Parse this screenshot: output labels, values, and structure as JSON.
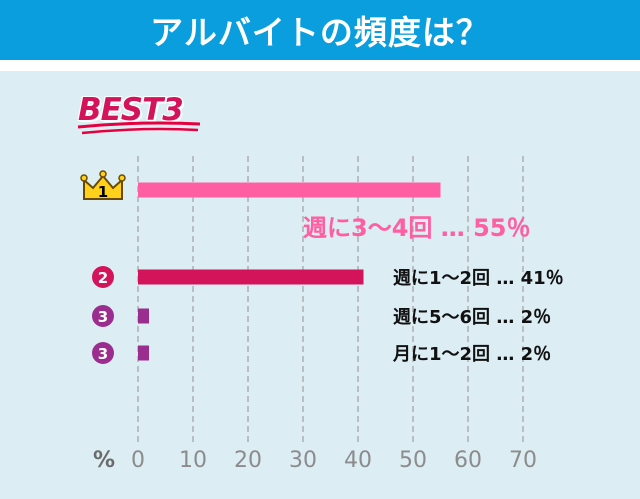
{
  "header": {
    "title": "アルバイトの頻度は？"
  },
  "badge": {
    "label": "BEST3"
  },
  "chart_data": {
    "type": "bar",
    "orientation": "horizontal",
    "title": "アルバイトの頻度は？",
    "unit_label": "%",
    "xlim": [
      0,
      70
    ],
    "ticks": [
      0,
      10,
      20,
      30,
      40,
      50,
      60,
      70
    ],
    "grid": true,
    "rows": [
      {
        "rank": "1",
        "label": "週に3〜4回",
        "value": 55,
        "annotation": "週に3〜4回 … 55％",
        "color": "#ff5fa2",
        "badge": "crown"
      },
      {
        "rank": "2",
        "label": "週に1〜2回",
        "value": 41,
        "annotation": "週に1〜2回 … 41％",
        "color": "#d4145a",
        "badge": "circle"
      },
      {
        "rank": "3",
        "label": "週に5〜6回",
        "value": 2,
        "annotation": "週に5〜6回 … 2％",
        "color": "#9b2d8f",
        "badge": "circle"
      },
      {
        "rank": "3",
        "label": "月に1〜2回",
        "value": 2,
        "annotation": "月に1〜2回 … 2％",
        "color": "#9b2d8f",
        "badge": "circle"
      }
    ]
  }
}
